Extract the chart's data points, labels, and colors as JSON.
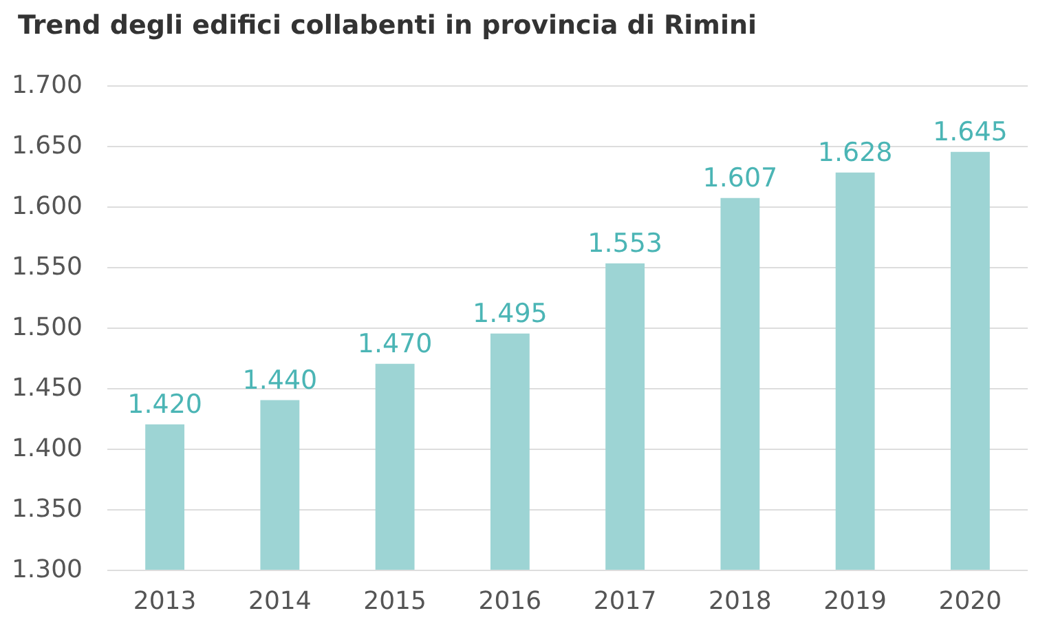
{
  "chart_data": {
    "type": "bar",
    "title": "Trend degli edifici collabenti in provincia di Rimini",
    "categories": [
      "2013",
      "2014",
      "2015",
      "2016",
      "2017",
      "2018",
      "2019",
      "2020"
    ],
    "values": [
      1420,
      1440,
      1470,
      1495,
      1553,
      1607,
      1628,
      1645
    ],
    "value_labels": [
      "1.420",
      "1.440",
      "1.470",
      "1.495",
      "1.553",
      "1.607",
      "1.628",
      "1.645"
    ],
    "color": "#9dd4d4",
    "ylim": [
      1300,
      1700
    ],
    "yticks": [
      {
        "value": 1300,
        "label": "1.300"
      },
      {
        "value": 1350,
        "label": "1.350"
      },
      {
        "value": 1400,
        "label": "1.400"
      },
      {
        "value": 1450,
        "label": "1.450"
      },
      {
        "value": 1500,
        "label": "1.500"
      },
      {
        "value": 1550,
        "label": "1.550"
      },
      {
        "value": 1600,
        "label": "1.600"
      },
      {
        "value": 1650,
        "label": "1.650"
      },
      {
        "value": 1700,
        "label": "1.700"
      }
    ],
    "grid": "y"
  }
}
